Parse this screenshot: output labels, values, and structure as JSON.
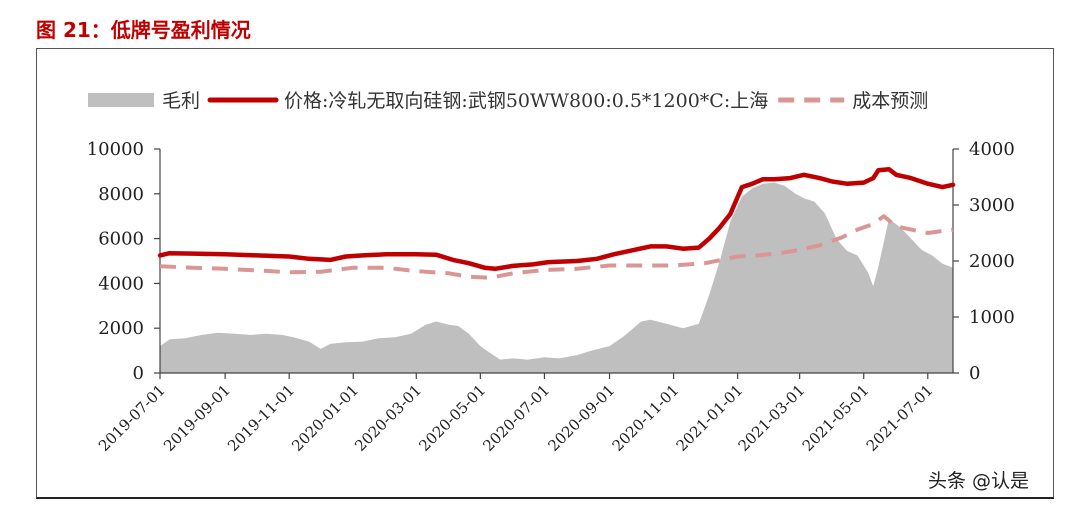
{
  "figure": {
    "title": "图 21：低牌号盈利情况",
    "watermark": "头条 @认是"
  },
  "chart_data": {
    "type": "area",
    "title": "",
    "xlabel": "",
    "ylabel_left": "",
    "ylabel_right": "",
    "legend_position": "top",
    "grid": false,
    "x_range": [
      "2019-07-01",
      "2021-07-25"
    ],
    "x_ticks": [
      "2019-07-01",
      "2019-09-01",
      "2019-11-01",
      "2020-01-01",
      "2020-03-01",
      "2020-05-01",
      "2020-07-01",
      "2020-09-01",
      "2020-11-01",
      "2021-01-01",
      "2021-03-01",
      "2021-05-01",
      "2021-07-01"
    ],
    "y_left": {
      "min": 0,
      "max": 10000,
      "ticks": [
        "0",
        "2000",
        "4000",
        "6000",
        "8000",
        "10000"
      ]
    },
    "y_right": {
      "min": 0,
      "max": 4000,
      "ticks": [
        "0",
        "1000",
        "2000",
        "3000",
        "4000"
      ]
    },
    "series": [
      {
        "name": "毛利",
        "type": "area",
        "axis": "right",
        "color": "#bfbfbf",
        "points": [
          [
            "2019-07-01",
            480
          ],
          [
            "2019-07-10",
            600
          ],
          [
            "2019-07-25",
            620
          ],
          [
            "2019-08-10",
            680
          ],
          [
            "2019-08-25",
            720
          ],
          [
            "2019-09-10",
            700
          ],
          [
            "2019-09-25",
            680
          ],
          [
            "2019-10-10",
            700
          ],
          [
            "2019-10-25",
            680
          ],
          [
            "2019-11-05",
            640
          ],
          [
            "2019-11-20",
            560
          ],
          [
            "2019-12-01",
            430
          ],
          [
            "2019-12-10",
            520
          ],
          [
            "2019-12-25",
            550
          ],
          [
            "2020-01-10",
            560
          ],
          [
            "2020-01-25",
            620
          ],
          [
            "2020-02-10",
            640
          ],
          [
            "2020-02-25",
            700
          ],
          [
            "2020-03-10",
            860
          ],
          [
            "2020-03-20",
            920
          ],
          [
            "2020-04-01",
            860
          ],
          [
            "2020-04-10",
            840
          ],
          [
            "2020-04-20",
            700
          ],
          [
            "2020-05-01",
            480
          ],
          [
            "2020-05-10",
            360
          ],
          [
            "2020-05-20",
            240
          ],
          [
            "2020-06-01",
            260
          ],
          [
            "2020-06-15",
            240
          ],
          [
            "2020-07-01",
            280
          ],
          [
            "2020-07-15",
            260
          ],
          [
            "2020-08-01",
            320
          ],
          [
            "2020-08-15",
            400
          ],
          [
            "2020-09-01",
            480
          ],
          [
            "2020-09-15",
            660
          ],
          [
            "2020-10-01",
            920
          ],
          [
            "2020-10-10",
            950
          ],
          [
            "2020-10-25",
            880
          ],
          [
            "2020-11-10",
            800
          ],
          [
            "2020-11-25",
            880
          ],
          [
            "2020-12-05",
            1400
          ],
          [
            "2020-12-15",
            2000
          ],
          [
            "2020-12-25",
            2700
          ],
          [
            "2021-01-05",
            3150
          ],
          [
            "2021-01-15",
            3300
          ],
          [
            "2021-01-25",
            3380
          ],
          [
            "2021-02-05",
            3400
          ],
          [
            "2021-02-15",
            3340
          ],
          [
            "2021-02-25",
            3200
          ],
          [
            "2021-03-05",
            3120
          ],
          [
            "2021-03-15",
            3060
          ],
          [
            "2021-03-25",
            2850
          ],
          [
            "2021-04-05",
            2400
          ],
          [
            "2021-04-15",
            2180
          ],
          [
            "2021-04-25",
            2100
          ],
          [
            "2021-05-05",
            1800
          ],
          [
            "2021-05-10",
            1550
          ],
          [
            "2021-05-15",
            1900
          ],
          [
            "2021-05-25",
            2750
          ],
          [
            "2021-06-05",
            2600
          ],
          [
            "2021-06-15",
            2400
          ],
          [
            "2021-06-25",
            2200
          ],
          [
            "2021-07-05",
            2100
          ],
          [
            "2021-07-15",
            1950
          ],
          [
            "2021-07-25",
            1880
          ]
        ]
      },
      {
        "name": "价格:冷轧无取向硅钢:武钢50WW800:0.5*1200*C:上海",
        "type": "line",
        "axis": "left",
        "color": "#c00000",
        "points": [
          [
            "2019-07-01",
            5250
          ],
          [
            "2019-07-10",
            5350
          ],
          [
            "2019-08-01",
            5330
          ],
          [
            "2019-09-01",
            5300
          ],
          [
            "2019-10-01",
            5250
          ],
          [
            "2019-11-01",
            5200
          ],
          [
            "2019-11-20",
            5100
          ],
          [
            "2019-12-10",
            5050
          ],
          [
            "2019-12-25",
            5200
          ],
          [
            "2020-01-10",
            5250
          ],
          [
            "2020-02-01",
            5300
          ],
          [
            "2020-03-01",
            5300
          ],
          [
            "2020-03-20",
            5280
          ],
          [
            "2020-04-05",
            5050
          ],
          [
            "2020-04-20",
            4900
          ],
          [
            "2020-05-05",
            4700
          ],
          [
            "2020-05-15",
            4650
          ],
          [
            "2020-06-01",
            4780
          ],
          [
            "2020-06-20",
            4850
          ],
          [
            "2020-07-05",
            4950
          ],
          [
            "2020-08-01",
            5000
          ],
          [
            "2020-08-20",
            5100
          ],
          [
            "2020-09-05",
            5300
          ],
          [
            "2020-09-25",
            5500
          ],
          [
            "2020-10-10",
            5650
          ],
          [
            "2020-10-25",
            5650
          ],
          [
            "2020-11-10",
            5550
          ],
          [
            "2020-11-25",
            5600
          ],
          [
            "2020-12-05",
            6000
          ],
          [
            "2020-12-15",
            6500
          ],
          [
            "2020-12-25",
            7100
          ],
          [
            "2021-01-05",
            8300
          ],
          [
            "2021-01-15",
            8450
          ],
          [
            "2021-01-25",
            8650
          ],
          [
            "2021-02-05",
            8650
          ],
          [
            "2021-02-20",
            8700
          ],
          [
            "2021-03-05",
            8850
          ],
          [
            "2021-03-20",
            8700
          ],
          [
            "2021-04-01",
            8550
          ],
          [
            "2021-04-15",
            8450
          ],
          [
            "2021-05-01",
            8500
          ],
          [
            "2021-05-10",
            8700
          ],
          [
            "2021-05-15",
            9050
          ],
          [
            "2021-05-25",
            9100
          ],
          [
            "2021-06-01",
            8850
          ],
          [
            "2021-06-15",
            8700
          ],
          [
            "2021-07-01",
            8450
          ],
          [
            "2021-07-15",
            8300
          ],
          [
            "2021-07-25",
            8400
          ]
        ]
      },
      {
        "name": "成本预测",
        "type": "dashed-line",
        "axis": "left",
        "color": "#d99694",
        "points": [
          [
            "2019-07-01",
            4770
          ],
          [
            "2019-08-01",
            4700
          ],
          [
            "2019-09-01",
            4650
          ],
          [
            "2019-10-01",
            4580
          ],
          [
            "2019-11-01",
            4500
          ],
          [
            "2019-12-01",
            4520
          ],
          [
            "2020-01-01",
            4700
          ],
          [
            "2020-02-01",
            4700
          ],
          [
            "2020-03-01",
            4550
          ],
          [
            "2020-04-01",
            4450
          ],
          [
            "2020-04-20",
            4300
          ],
          [
            "2020-05-10",
            4250
          ],
          [
            "2020-06-01",
            4450
          ],
          [
            "2020-07-01",
            4600
          ],
          [
            "2020-08-01",
            4650
          ],
          [
            "2020-09-01",
            4800
          ],
          [
            "2020-10-01",
            4800
          ],
          [
            "2020-11-01",
            4800
          ],
          [
            "2020-12-01",
            4900
          ],
          [
            "2021-01-01",
            5200
          ],
          [
            "2021-01-20",
            5250
          ],
          [
            "2021-02-10",
            5350
          ],
          [
            "2021-03-01",
            5500
          ],
          [
            "2021-03-20",
            5700
          ],
          [
            "2021-04-10",
            6050
          ],
          [
            "2021-04-25",
            6400
          ],
          [
            "2021-05-10",
            6650
          ],
          [
            "2021-05-20",
            7000
          ],
          [
            "2021-06-01",
            6550
          ],
          [
            "2021-06-15",
            6400
          ],
          [
            "2021-07-01",
            6250
          ],
          [
            "2021-07-25",
            6400
          ]
        ]
      }
    ]
  },
  "legend": [
    {
      "label": "毛利",
      "swatch": "area"
    },
    {
      "label": "价格:冷轧无取向硅钢:武钢50WW800:0.5*1200*C:上海",
      "swatch": "line"
    },
    {
      "label": "成本预测",
      "swatch": "dashed"
    }
  ]
}
